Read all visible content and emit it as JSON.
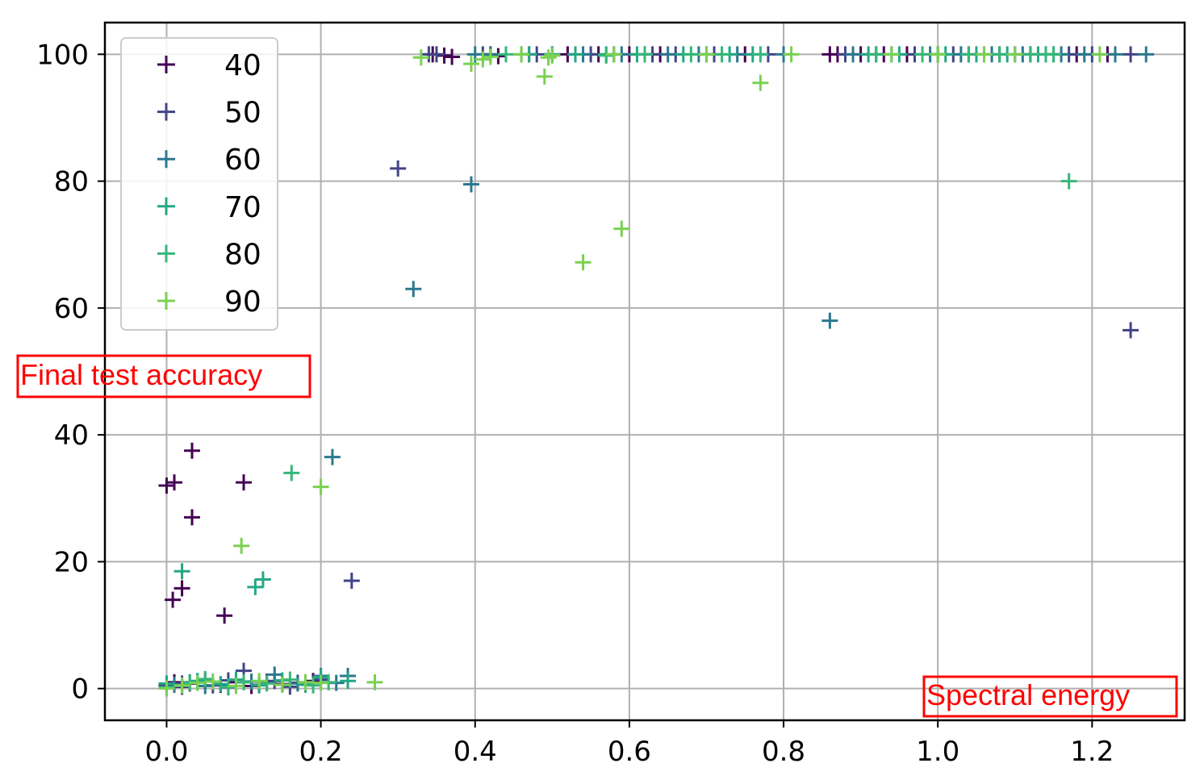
{
  "chart_data": {
    "type": "scatter",
    "title": "",
    "xlabel": "Spectral energy",
    "ylabel": "Final test accuracy",
    "xlim": [
      -0.08,
      1.32
    ],
    "ylim": [
      -5,
      105
    ],
    "xticks": [
      0.0,
      0.2,
      0.4,
      0.6,
      0.8,
      1.0,
      1.2
    ],
    "xtick_labels": [
      "0.0",
      "0.2",
      "0.4",
      "0.6",
      "0.8",
      "1.0",
      "1.2"
    ],
    "yticks": [
      0,
      20,
      40,
      60,
      80,
      100
    ],
    "ytick_labels": [
      "0",
      "20",
      "40",
      "60",
      "80",
      "100"
    ],
    "grid": true,
    "legend_position": "top-left",
    "marker": "plus",
    "series": [
      {
        "name": "40",
        "color": "#440154",
        "points": [
          [
            0.0,
            0.5
          ],
          [
            0.01,
            1.0
          ],
          [
            0.02,
            0.3
          ],
          [
            0.03,
            0.8
          ],
          [
            0.05,
            1.2
          ],
          [
            0.07,
            0.6
          ],
          [
            0.09,
            1.0
          ],
          [
            0.11,
            0.4
          ],
          [
            0.13,
            1.1
          ],
          [
            0.15,
            0.7
          ],
          [
            0.17,
            0.9
          ],
          [
            0.19,
            1.2
          ],
          [
            0.0,
            32
          ],
          [
            0.01,
            32.5
          ],
          [
            0.033,
            37.5
          ],
          [
            0.1,
            32.5
          ],
          [
            0.033,
            27
          ],
          [
            0.008,
            14
          ],
          [
            0.02,
            15.8
          ],
          [
            0.075,
            11.5
          ],
          [
            0.345,
            100
          ],
          [
            0.36,
            99.8
          ],
          [
            0.37,
            99.6
          ],
          [
            0.42,
            100
          ],
          [
            0.43,
            99.7
          ],
          [
            0.47,
            100
          ],
          [
            0.5,
            100
          ],
          [
            0.52,
            100
          ],
          [
            0.56,
            100
          ],
          [
            0.6,
            100
          ],
          [
            0.62,
            100
          ],
          [
            0.64,
            100
          ],
          [
            0.7,
            100
          ],
          [
            0.75,
            100
          ],
          [
            0.86,
            100
          ],
          [
            0.87,
            100
          ],
          [
            0.9,
            100
          ],
          [
            0.93,
            100
          ],
          [
            0.96,
            100
          ],
          [
            1.0,
            100
          ],
          [
            1.04,
            100
          ],
          [
            1.08,
            100
          ],
          [
            1.12,
            100
          ],
          [
            1.15,
            100
          ],
          [
            1.18,
            100
          ],
          [
            1.22,
            100
          ]
        ]
      },
      {
        "name": "50",
        "color": "#414487",
        "points": [
          [
            0.0,
            0.4
          ],
          [
            0.02,
            0.8
          ],
          [
            0.04,
            1.1
          ],
          [
            0.06,
            0.5
          ],
          [
            0.08,
            1.3
          ],
          [
            0.1,
            2.8
          ],
          [
            0.12,
            0.6
          ],
          [
            0.14,
            1.2
          ],
          [
            0.16,
            0.3
          ],
          [
            0.18,
            1.0
          ],
          [
            0.2,
            1.4
          ],
          [
            0.24,
            17
          ],
          [
            0.3,
            82
          ],
          [
            1.25,
            56.5
          ],
          [
            0.34,
            100
          ],
          [
            0.35,
            100
          ],
          [
            0.41,
            100
          ],
          [
            0.48,
            100
          ],
          [
            0.55,
            100
          ],
          [
            0.58,
            100
          ],
          [
            0.63,
            100
          ],
          [
            0.66,
            100
          ],
          [
            0.71,
            100
          ],
          [
            0.78,
            100
          ],
          [
            0.88,
            100
          ],
          [
            0.92,
            100
          ],
          [
            0.97,
            100
          ],
          [
            1.02,
            100
          ],
          [
            1.06,
            100
          ],
          [
            1.1,
            100
          ],
          [
            1.14,
            100
          ],
          [
            1.17,
            100
          ],
          [
            1.2,
            100
          ],
          [
            1.25,
            100
          ]
        ]
      },
      {
        "name": "60",
        "color": "#2a788e",
        "points": [
          [
            0.01,
            0.6
          ],
          [
            0.03,
            1.0
          ],
          [
            0.05,
            0.4
          ],
          [
            0.08,
            0.2
          ],
          [
            0.11,
            1.1
          ],
          [
            0.14,
            2.2
          ],
          [
            0.17,
            0.8
          ],
          [
            0.2,
            2.0
          ],
          [
            0.22,
            0.9
          ],
          [
            0.235,
            2.0
          ],
          [
            0.215,
            36.5
          ],
          [
            0.32,
            63
          ],
          [
            0.395,
            79.5
          ],
          [
            0.86,
            58
          ],
          [
            0.4,
            100
          ],
          [
            0.42,
            100
          ],
          [
            0.46,
            100
          ],
          [
            0.54,
            100
          ],
          [
            0.59,
            100
          ],
          [
            0.65,
            100
          ],
          [
            0.69,
            100
          ],
          [
            0.74,
            100
          ],
          [
            0.8,
            100
          ],
          [
            0.89,
            100
          ],
          [
            0.94,
            100
          ],
          [
            0.99,
            100
          ],
          [
            1.03,
            100
          ],
          [
            1.07,
            100
          ],
          [
            1.11,
            100
          ],
          [
            1.16,
            100
          ],
          [
            1.19,
            100
          ],
          [
            1.23,
            100
          ],
          [
            1.27,
            100
          ]
        ]
      },
      {
        "name": "70",
        "color": "#22a884",
        "points": [
          [
            0.0,
            0.8
          ],
          [
            0.02,
            0.4
          ],
          [
            0.04,
            1.2
          ],
          [
            0.07,
            0.7
          ],
          [
            0.09,
            1.4
          ],
          [
            0.12,
            0.5
          ],
          [
            0.15,
            1.3
          ],
          [
            0.18,
            0.6
          ],
          [
            0.2,
            1.8
          ],
          [
            0.235,
            1.2
          ],
          [
            0.02,
            18.5
          ],
          [
            0.115,
            16
          ],
          [
            0.125,
            17.2
          ],
          [
            0.47,
            100
          ],
          [
            0.53,
            100
          ],
          [
            0.57,
            100
          ],
          [
            0.61,
            100
          ],
          [
            0.67,
            100
          ],
          [
            0.73,
            100
          ],
          [
            0.76,
            100
          ],
          [
            0.91,
            100
          ],
          [
            0.95,
            100
          ],
          [
            1.01,
            100
          ],
          [
            1.05,
            100
          ],
          [
            1.09,
            100
          ],
          [
            1.13,
            100
          ],
          [
            1.15,
            100
          ]
        ]
      },
      {
        "name": "80",
        "color": "#35b779",
        "points": [
          [
            0.0,
            0.2
          ],
          [
            0.03,
            0.9
          ],
          [
            0.05,
            1.5
          ],
          [
            0.08,
            0.3
          ],
          [
            0.1,
            1.0
          ],
          [
            0.13,
            0.8
          ],
          [
            0.16,
            1.4
          ],
          [
            0.19,
            0.5
          ],
          [
            0.21,
            1.0
          ],
          [
            0.162,
            34
          ],
          [
            1.17,
            80
          ],
          [
            0.44,
            100
          ],
          [
            0.5,
            100
          ],
          [
            0.57,
            99.8
          ],
          [
            0.62,
            100
          ],
          [
            0.68,
            100
          ],
          [
            0.72,
            100
          ],
          [
            0.77,
            100
          ],
          [
            0.92,
            100
          ],
          [
            0.98,
            100
          ],
          [
            1.0,
            100
          ],
          [
            1.04,
            100
          ],
          [
            1.08,
            100
          ],
          [
            1.12,
            100
          ],
          [
            1.14,
            100
          ],
          [
            1.15,
            100
          ]
        ]
      },
      {
        "name": "90",
        "color": "#7ad151",
        "points": [
          [
            0.0,
            0.0
          ],
          [
            0.02,
            0.5
          ],
          [
            0.04,
            0.9
          ],
          [
            0.06,
            1.1
          ],
          [
            0.09,
            0.4
          ],
          [
            0.12,
            1.2
          ],
          [
            0.15,
            0.6
          ],
          [
            0.18,
            1.0
          ],
          [
            0.2,
            0.9
          ],
          [
            0.27,
            1.0
          ],
          [
            0.2,
            31.8
          ],
          [
            0.097,
            22.5
          ],
          [
            0.33,
            99.5
          ],
          [
            0.395,
            98.5
          ],
          [
            0.41,
            99.2
          ],
          [
            0.42,
            99.6
          ],
          [
            0.46,
            100
          ],
          [
            0.49,
            96.5
          ],
          [
            0.495,
            99.5
          ],
          [
            0.5,
            99.8
          ],
          [
            0.54,
            67.2
          ],
          [
            0.59,
            72.5
          ],
          [
            0.77,
            95.5
          ],
          [
            0.58,
            100
          ],
          [
            0.7,
            100
          ],
          [
            0.81,
            100
          ],
          [
            0.94,
            100
          ],
          [
            1.0,
            100
          ],
          [
            1.06,
            100
          ],
          [
            1.1,
            100
          ],
          [
            1.21,
            100
          ]
        ]
      }
    ]
  }
}
